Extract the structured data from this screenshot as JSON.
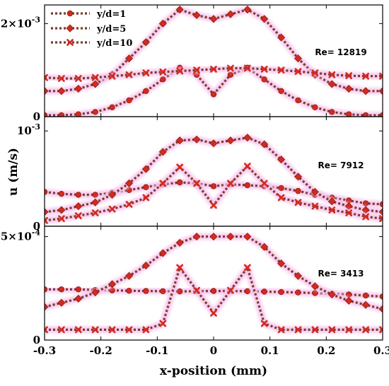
{
  "chart_data": {
    "type": "line",
    "xlabel": "x-position (mm)",
    "ylabel": "u (m/s)",
    "xlim": [
      -0.3,
      0.3
    ],
    "xticks": [
      "-0.3",
      "-0.2",
      "-0.1",
      "0",
      "0.1",
      "0.2",
      "0.3"
    ],
    "series_style": {
      "line_color": "#7b3a2a",
      "marker_color": "#d42a1e",
      "glow_color": "#f6c6ee"
    },
    "legend": [
      {
        "name": "y/d=1",
        "marker": "circle"
      },
      {
        "name": "y/d=5",
        "marker": "diamond"
      },
      {
        "name": "y/d=10",
        "marker": "cross"
      }
    ],
    "panels": [
      {
        "re_label": "Re= 12819",
        "ylim": [
          0,
          0.0024
        ],
        "ytick_labels": [
          {
            "value": 0.002,
            "mantissa": "2×10",
            "exp": "-3"
          },
          {
            "value": 0,
            "mantissa": "0",
            "exp": ""
          }
        ],
        "series": [
          {
            "name": "y/d=1",
            "x": [
              -0.3,
              -0.27,
              -0.24,
              -0.21,
              -0.18,
              -0.15,
              -0.12,
              -0.09,
              -0.06,
              -0.03,
              0,
              0.03,
              0.06,
              0.09,
              0.12,
              0.15,
              0.18,
              0.21,
              0.24,
              0.27,
              0.3
            ],
            "y": [
              3e-05,
              3e-05,
              5e-05,
              0.0001,
              0.0002,
              0.00035,
              0.00055,
              0.0008,
              0.00105,
              0.0009,
              0.00048,
              0.0009,
              0.00105,
              0.0008,
              0.00055,
              0.00035,
              0.0002,
              0.0001,
              5e-05,
              3e-05,
              3e-05
            ]
          },
          {
            "name": "y/d=5",
            "x": [
              -0.3,
              -0.27,
              -0.24,
              -0.21,
              -0.18,
              -0.15,
              -0.12,
              -0.09,
              -0.06,
              -0.03,
              0,
              0.03,
              0.06,
              0.09,
              0.12,
              0.15,
              0.18,
              0.21,
              0.24,
              0.27,
              0.3
            ],
            "y": [
              0.00055,
              0.00055,
              0.0006,
              0.0007,
              0.0009,
              0.00125,
              0.0016,
              0.002,
              0.0023,
              0.00218,
              0.0021,
              0.0022,
              0.0023,
              0.0021,
              0.0017,
              0.00125,
              0.0009,
              0.0007,
              0.0006,
              0.00055,
              0.00055
            ]
          },
          {
            "name": "y/d=10",
            "x": [
              -0.3,
              -0.27,
              -0.24,
              -0.21,
              -0.18,
              -0.15,
              -0.12,
              -0.09,
              -0.06,
              -0.03,
              0,
              0.03,
              0.06,
              0.09,
              0.12,
              0.15,
              0.18,
              0.21,
              0.24,
              0.27,
              0.3
            ],
            "y": [
              0.00084,
              0.00082,
              0.00082,
              0.00084,
              0.00087,
              0.0009,
              0.00094,
              0.00096,
              0.00098,
              0.001,
              0.00102,
              0.00104,
              0.00104,
              0.00102,
              0.001,
              0.00097,
              0.00094,
              0.0009,
              0.00088,
              0.00087,
              0.00087
            ]
          }
        ]
      },
      {
        "re_label": "Re= 7912",
        "ylim": [
          0,
          0.00115
        ],
        "ytick_labels": [
          {
            "value": 0.001,
            "mantissa": "10",
            "exp": "-3"
          },
          {
            "value": 0,
            "mantissa": "0",
            "exp": ""
          }
        ],
        "series": [
          {
            "name": "y/d=1",
            "x": [
              -0.3,
              -0.27,
              -0.24,
              -0.21,
              -0.18,
              -0.15,
              -0.12,
              -0.09,
              -0.06,
              -0.03,
              0,
              0.03,
              0.06,
              0.09,
              0.12,
              0.15,
              0.18,
              0.21,
              0.24,
              0.27,
              0.3
            ],
            "y": [
              0.00036,
              0.00034,
              0.00033,
              0.00033,
              0.00035,
              0.00038,
              0.00041,
              0.00044,
              0.00046,
              0.00045,
              0.00042,
              0.00044,
              0.00043,
              0.00042,
              0.0004,
              0.00037,
              0.00033,
              0.0003,
              0.00027,
              0.00024,
              0.00023
            ]
          },
          {
            "name": "y/d=5",
            "x": [
              -0.3,
              -0.27,
              -0.24,
              -0.21,
              -0.18,
              -0.15,
              -0.12,
              -0.09,
              -0.06,
              -0.03,
              0,
              0.03,
              0.06,
              0.09,
              0.12,
              0.15,
              0.18,
              0.21,
              0.24,
              0.27,
              0.3
            ],
            "y": [
              0.00015,
              0.00017,
              0.00021,
              0.00025,
              0.00033,
              0.00045,
              0.0006,
              0.00078,
              0.0009,
              0.00091,
              0.00087,
              0.0009,
              0.00093,
              0.00086,
              0.0007,
              0.00052,
              0.00036,
              0.00026,
              0.00021,
              0.00017,
              0.00015
            ]
          },
          {
            "name": "y/d=10",
            "x": [
              -0.3,
              -0.27,
              -0.24,
              -0.21,
              -0.18,
              -0.15,
              -0.12,
              -0.09,
              -0.06,
              -0.03,
              0,
              0.03,
              0.06,
              0.09,
              0.12,
              0.15,
              0.18,
              0.21,
              0.24,
              0.27,
              0.3
            ],
            "y": [
              6e-05,
              8e-05,
              0.00011,
              0.00014,
              0.00018,
              0.00023,
              0.0003,
              0.00045,
              0.00062,
              0.00045,
              0.00022,
              0.00045,
              0.00063,
              0.00045,
              0.0003,
              0.00025,
              0.00021,
              0.00017,
              0.00014,
              0.0001,
              8e-05
            ]
          }
        ]
      },
      {
        "re_label": "Re= 3413",
        "ylim": [
          0,
          0.00055
        ],
        "ytick_labels": [
          {
            "value": 0.0005,
            "mantissa": "5×10",
            "exp": "-4"
          },
          {
            "value": 0,
            "mantissa": "0",
            "exp": ""
          }
        ],
        "series": [
          {
            "name": "y/d=1",
            "x": [
              -0.3,
              -0.27,
              -0.24,
              -0.21,
              -0.18,
              -0.15,
              -0.12,
              -0.09,
              -0.06,
              -0.03,
              0,
              0.03,
              0.06,
              0.09,
              0.12,
              0.15,
              0.18,
              0.21,
              0.24,
              0.27,
              0.3
            ],
            "y": [
              0.000245,
              0.000245,
              0.000245,
              0.000242,
              0.00024,
              0.000238,
              0.000237,
              0.000236,
              0.000235,
              0.000236,
              0.000237,
              0.000237,
              0.000236,
              0.000234,
              0.000232,
              0.00023,
              0.000227,
              0.000224,
              0.00022,
              0.000215,
              0.00021
            ]
          },
          {
            "name": "y/d=5",
            "x": [
              -0.3,
              -0.27,
              -0.24,
              -0.21,
              -0.18,
              -0.15,
              -0.12,
              -0.09,
              -0.06,
              -0.03,
              0,
              0.03,
              0.06,
              0.09,
              0.12,
              0.15,
              0.18,
              0.21,
              0.24,
              0.27,
              0.3
            ],
            "y": [
              0.00016,
              0.00018,
              0.0002,
              0.00023,
              0.00027,
              0.00031,
              0.00036,
              0.00042,
              0.00047,
              0.0005,
              0.0005,
              0.0005,
              0.0005,
              0.00045,
              0.00037,
              0.00031,
              0.00026,
              0.00022,
              0.00019,
              0.00017,
              0.00015
            ]
          },
          {
            "name": "y/d=10",
            "x": [
              -0.3,
              -0.27,
              -0.24,
              -0.21,
              -0.18,
              -0.15,
              -0.12,
              -0.09,
              -0.06,
              -0.03,
              0,
              0.03,
              0.06,
              0.09,
              0.12,
              0.15,
              0.18,
              0.21,
              0.24,
              0.27,
              0.3
            ],
            "y": [
              5e-05,
              5e-05,
              5e-05,
              5e-05,
              5e-05,
              5e-05,
              5e-05,
              8e-05,
              0.00035,
              0.00024,
              0.00013,
              0.00024,
              0.00035,
              8e-05,
              5e-05,
              5e-05,
              5e-05,
              5e-05,
              5e-05,
              5e-05,
              5e-05
            ]
          }
        ]
      }
    ]
  }
}
